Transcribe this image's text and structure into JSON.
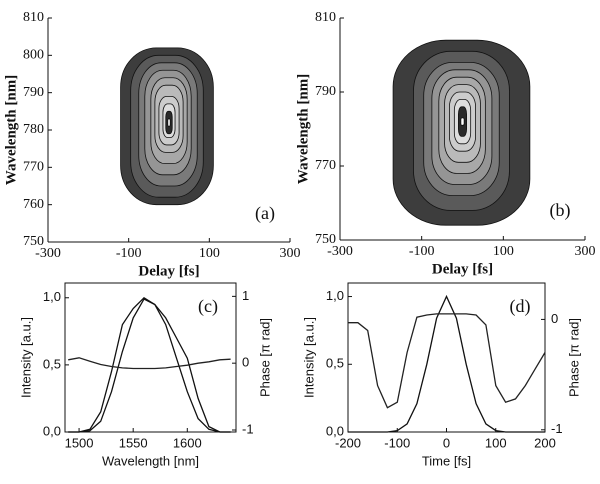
{
  "chart_data": [
    {
      "type": "contour",
      "label": "(a)",
      "xlabel": "Delay [fs]",
      "ylabel": "Wavelength [nm]",
      "xlim": [
        -300,
        300
      ],
      "ylim": [
        750,
        810
      ],
      "xticks": [
        -300,
        -100,
        100,
        300
      ],
      "yticks": [
        750,
        760,
        770,
        780,
        790,
        800,
        810
      ],
      "levels": [
        {
          "x": [
            -120,
            110
          ],
          "y": [
            760,
            802
          ],
          "color": "#3d3d3d"
        },
        {
          "x": [
            -95,
            85
          ],
          "y": [
            762,
            800
          ],
          "color": "#5a5a5a"
        },
        {
          "x": [
            -75,
            70
          ],
          "y": [
            765,
            798
          ],
          "color": "#7a7a7a"
        },
        {
          "x": [
            -60,
            55
          ],
          "y": [
            768,
            796
          ],
          "color": "#959595"
        },
        {
          "x": [
            -45,
            45
          ],
          "y": [
            771,
            794
          ],
          "color": "#a8a8a8"
        },
        {
          "x": [
            -35,
            35
          ],
          "y": [
            774,
            792
          ],
          "color": "#bababa"
        },
        {
          "x": [
            -25,
            25
          ],
          "y": [
            776,
            789
          ],
          "color": "#cccccc"
        },
        {
          "x": [
            -15,
            15
          ],
          "y": [
            778,
            787
          ],
          "color": "#dddddd"
        },
        {
          "x": [
            -8,
            8
          ],
          "y": [
            779,
            785
          ],
          "color": "#2a2a2a"
        },
        {
          "x": [
            -3,
            3
          ],
          "y": [
            781,
            783
          ],
          "color": "#ffffff"
        }
      ]
    },
    {
      "type": "contour",
      "label": "(b)",
      "xlabel": "Delay [fs]",
      "ylabel": "Wavelength [nm]",
      "xlim": [
        -300,
        300
      ],
      "ylim": [
        750,
        810
      ],
      "xticks": [
        -300,
        -100,
        100,
        300
      ],
      "yticks": [
        750,
        770,
        790,
        810
      ],
      "levels": [
        {
          "x": [
            -170,
            165
          ],
          "y": [
            754,
            804
          ],
          "color": "#3d3d3d"
        },
        {
          "x": [
            -120,
            115
          ],
          "y": [
            758,
            801
          ],
          "color": "#5a5a5a"
        },
        {
          "x": [
            -95,
            90
          ],
          "y": [
            762,
            798
          ],
          "color": "#7a7a7a"
        },
        {
          "x": [
            -75,
            72
          ],
          "y": [
            765,
            796
          ],
          "color": "#959595"
        },
        {
          "x": [
            -58,
            56
          ],
          "y": [
            768,
            794
          ],
          "color": "#a8a8a8"
        },
        {
          "x": [
            -44,
            44
          ],
          "y": [
            771,
            792
          ],
          "color": "#bababa"
        },
        {
          "x": [
            -32,
            32
          ],
          "y": [
            774,
            790
          ],
          "color": "#cccccc"
        },
        {
          "x": [
            -20,
            20
          ],
          "y": [
            776,
            788
          ],
          "color": "#dddddd"
        },
        {
          "x": [
            -10,
            10
          ],
          "y": [
            778,
            786
          ],
          "color": "#2a2a2a"
        },
        {
          "x": [
            -4,
            4
          ],
          "y": [
            781,
            783
          ],
          "color": "#ffffff"
        }
      ]
    },
    {
      "type": "line",
      "label": "(c)",
      "xlabel": "Wavelength [nm]",
      "ylabel": "Intensity [a.u.]",
      "y2label": "Phase [π rad]",
      "xlim": [
        1487,
        1645
      ],
      "ylim": [
        0,
        1.11
      ],
      "y2lim": [
        -1.03,
        1.2
      ],
      "xticks": [
        1500,
        1550,
        1600
      ],
      "yticks": [
        {
          "value": 0,
          "label": "0,0"
        },
        {
          "value": 0.5,
          "label": "0,5"
        },
        {
          "value": 1,
          "label": "1,0"
        }
      ],
      "y2ticks": [
        -1,
        0,
        1
      ],
      "x": [
        1490,
        1500,
        1510,
        1520,
        1530,
        1540,
        1550,
        1560,
        1570,
        1580,
        1590,
        1600,
        1610,
        1620,
        1630,
        1640
      ],
      "series": [
        {
          "color": "#111111",
          "values": [
            0,
            0,
            0.02,
            0.15,
            0.45,
            0.8,
            0.92,
            1.0,
            0.95,
            0.85,
            0.7,
            0.55,
            0.25,
            0.04,
            0,
            0
          ]
        },
        {
          "color": "#111111",
          "values": [
            0,
            0,
            0.01,
            0.08,
            0.3,
            0.6,
            0.85,
            0.99,
            0.95,
            0.8,
            0.55,
            0.3,
            0.1,
            0.02,
            0,
            0
          ]
        },
        {
          "color": "#222222",
          "axis": "y2",
          "values": [
            0.05,
            0.08,
            0.03,
            -0.02,
            -0.05,
            -0.07,
            -0.08,
            -0.08,
            -0.08,
            -0.07,
            -0.05,
            -0.03,
            0.0,
            0.02,
            0.05,
            0.06
          ]
        }
      ]
    },
    {
      "type": "line",
      "label": "(d)",
      "xlabel": "Time [fs]",
      "ylabel": "Intensity [a.u.]",
      "y2label": "Phase [π rad]",
      "xlim": [
        -200,
        200
      ],
      "ylim": [
        0,
        1.1
      ],
      "y2lim": [
        -1.02,
        0.33
      ],
      "xticks": [
        -200,
        -100,
        0,
        100,
        200
      ],
      "yticks": [
        {
          "value": 0,
          "label": "0,0"
        },
        {
          "value": 0.5,
          "label": "0,5"
        },
        {
          "value": 1,
          "label": "1,0"
        }
      ],
      "y2ticks": [
        -1,
        0
      ],
      "x": [
        -200,
        -180,
        -160,
        -140,
        -120,
        -100,
        -80,
        -60,
        -40,
        -20,
        0,
        20,
        40,
        60,
        80,
        100,
        120,
        140,
        160,
        180,
        200
      ],
      "series": [
        {
          "color": "#111111",
          "values": [
            0,
            0,
            0,
            0,
            0,
            0.01,
            0.06,
            0.21,
            0.5,
            0.84,
            1,
            0.84,
            0.5,
            0.21,
            0.06,
            0.01,
            0,
            0,
            0,
            0,
            0
          ]
        },
        {
          "color": "#222222",
          "axis": "y2",
          "values": [
            -0.03,
            -0.03,
            -0.1,
            -0.6,
            -0.8,
            -0.75,
            -0.3,
            0.02,
            0.04,
            0.05,
            0.05,
            0.05,
            0.05,
            0.04,
            -0.05,
            -0.6,
            -0.75,
            -0.72,
            -0.6,
            -0.45,
            -0.3
          ]
        }
      ]
    }
  ]
}
